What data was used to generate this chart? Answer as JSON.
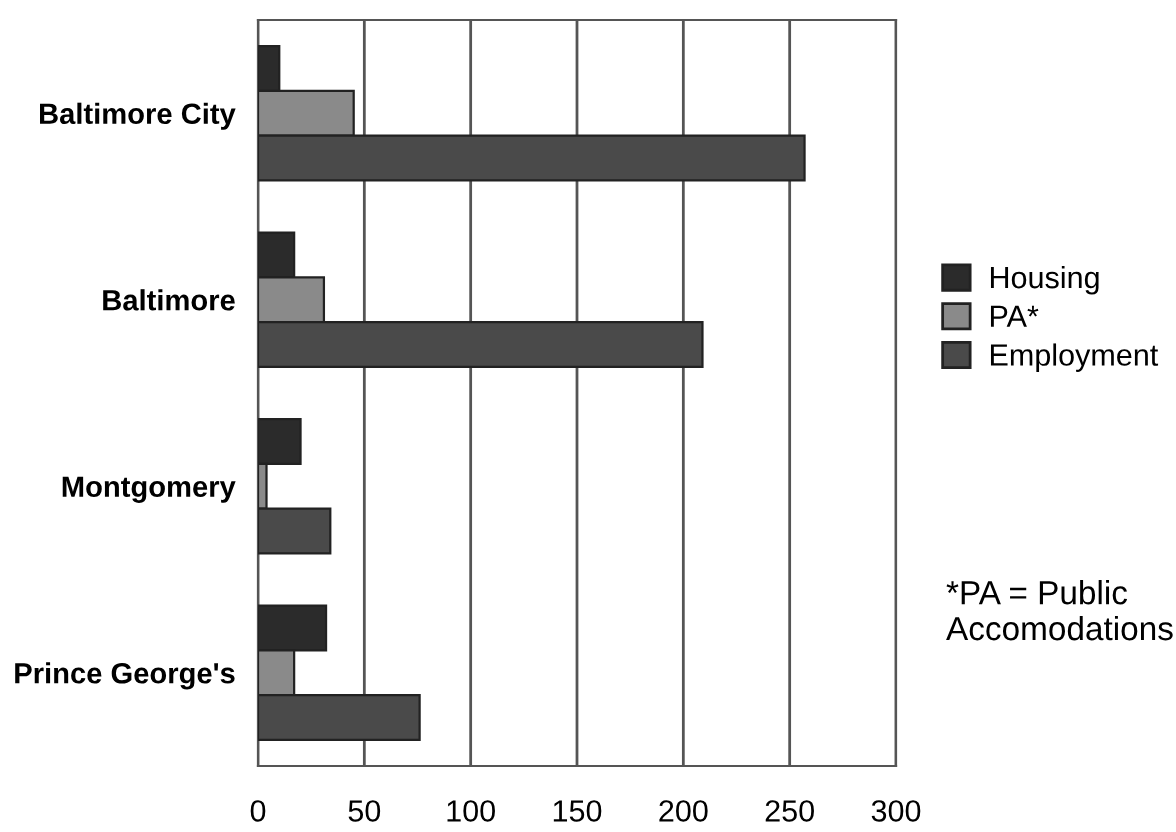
{
  "chart_data": {
    "type": "bar",
    "orientation": "horizontal",
    "categories": [
      "Baltimore City",
      "Baltimore",
      "Montgomery",
      "Prince George's"
    ],
    "series": [
      {
        "name": "Housing",
        "color": "#2b2b2b",
        "values": [
          10,
          17,
          20,
          32
        ]
      },
      {
        "name": "PA*",
        "color": "#8a8a8a",
        "values": [
          45,
          31,
          4,
          17
        ]
      },
      {
        "name": "Employment",
        "color": "#4a4a4a",
        "values": [
          257,
          209,
          34,
          76
        ]
      }
    ],
    "xlim": [
      0,
      300
    ],
    "xticks": [
      0,
      50,
      100,
      150,
      200,
      250,
      300
    ],
    "grid": "x",
    "legend": "right",
    "annotations": [
      "*PA = Public Accomodations"
    ]
  }
}
